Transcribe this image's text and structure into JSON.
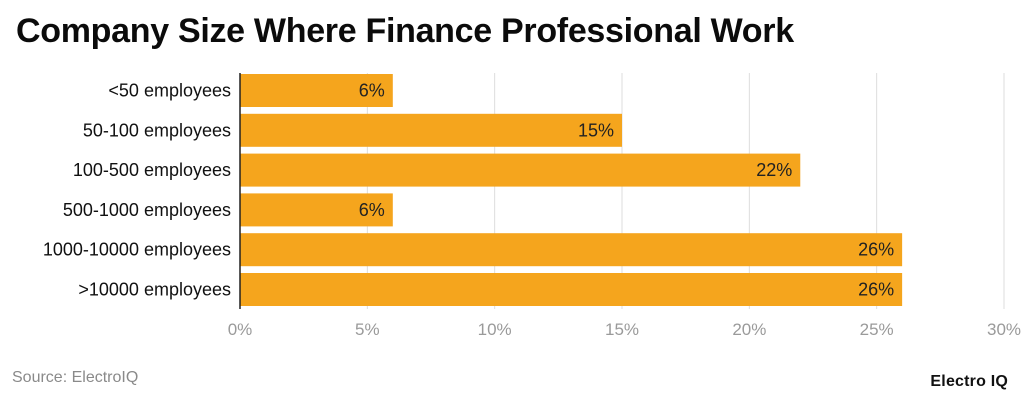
{
  "title": "Company Size Where Finance Professional Work",
  "source": "Source: ElectroIQ",
  "brand": "Electro IQ",
  "colors": {
    "bar": "#F5A51D",
    "grid": "#DDDDDD",
    "axis": "#222222",
    "tick_label": "#9A9A9A",
    "category_label": "#111111",
    "value_label": "#222222"
  },
  "chart_data": {
    "type": "bar",
    "orientation": "horizontal",
    "categories": [
      "<50 employees",
      "50-100 employees",
      "100-500 employees",
      "500-1000 employees",
      "1000-10000 employees",
      ">10000 employees"
    ],
    "values": [
      6,
      15,
      22,
      6,
      26,
      26
    ],
    "value_labels": [
      "6%",
      "15%",
      "22%",
      "6%",
      "26%",
      "26%"
    ],
    "xlim": [
      0,
      30
    ],
    "x_ticks": [
      0,
      5,
      10,
      15,
      20,
      25,
      30
    ],
    "x_tick_labels": [
      "0%",
      "5%",
      "10%",
      "15%",
      "20%",
      "25%",
      "30%"
    ],
    "grid": true,
    "xlabel": "",
    "ylabel": ""
  }
}
